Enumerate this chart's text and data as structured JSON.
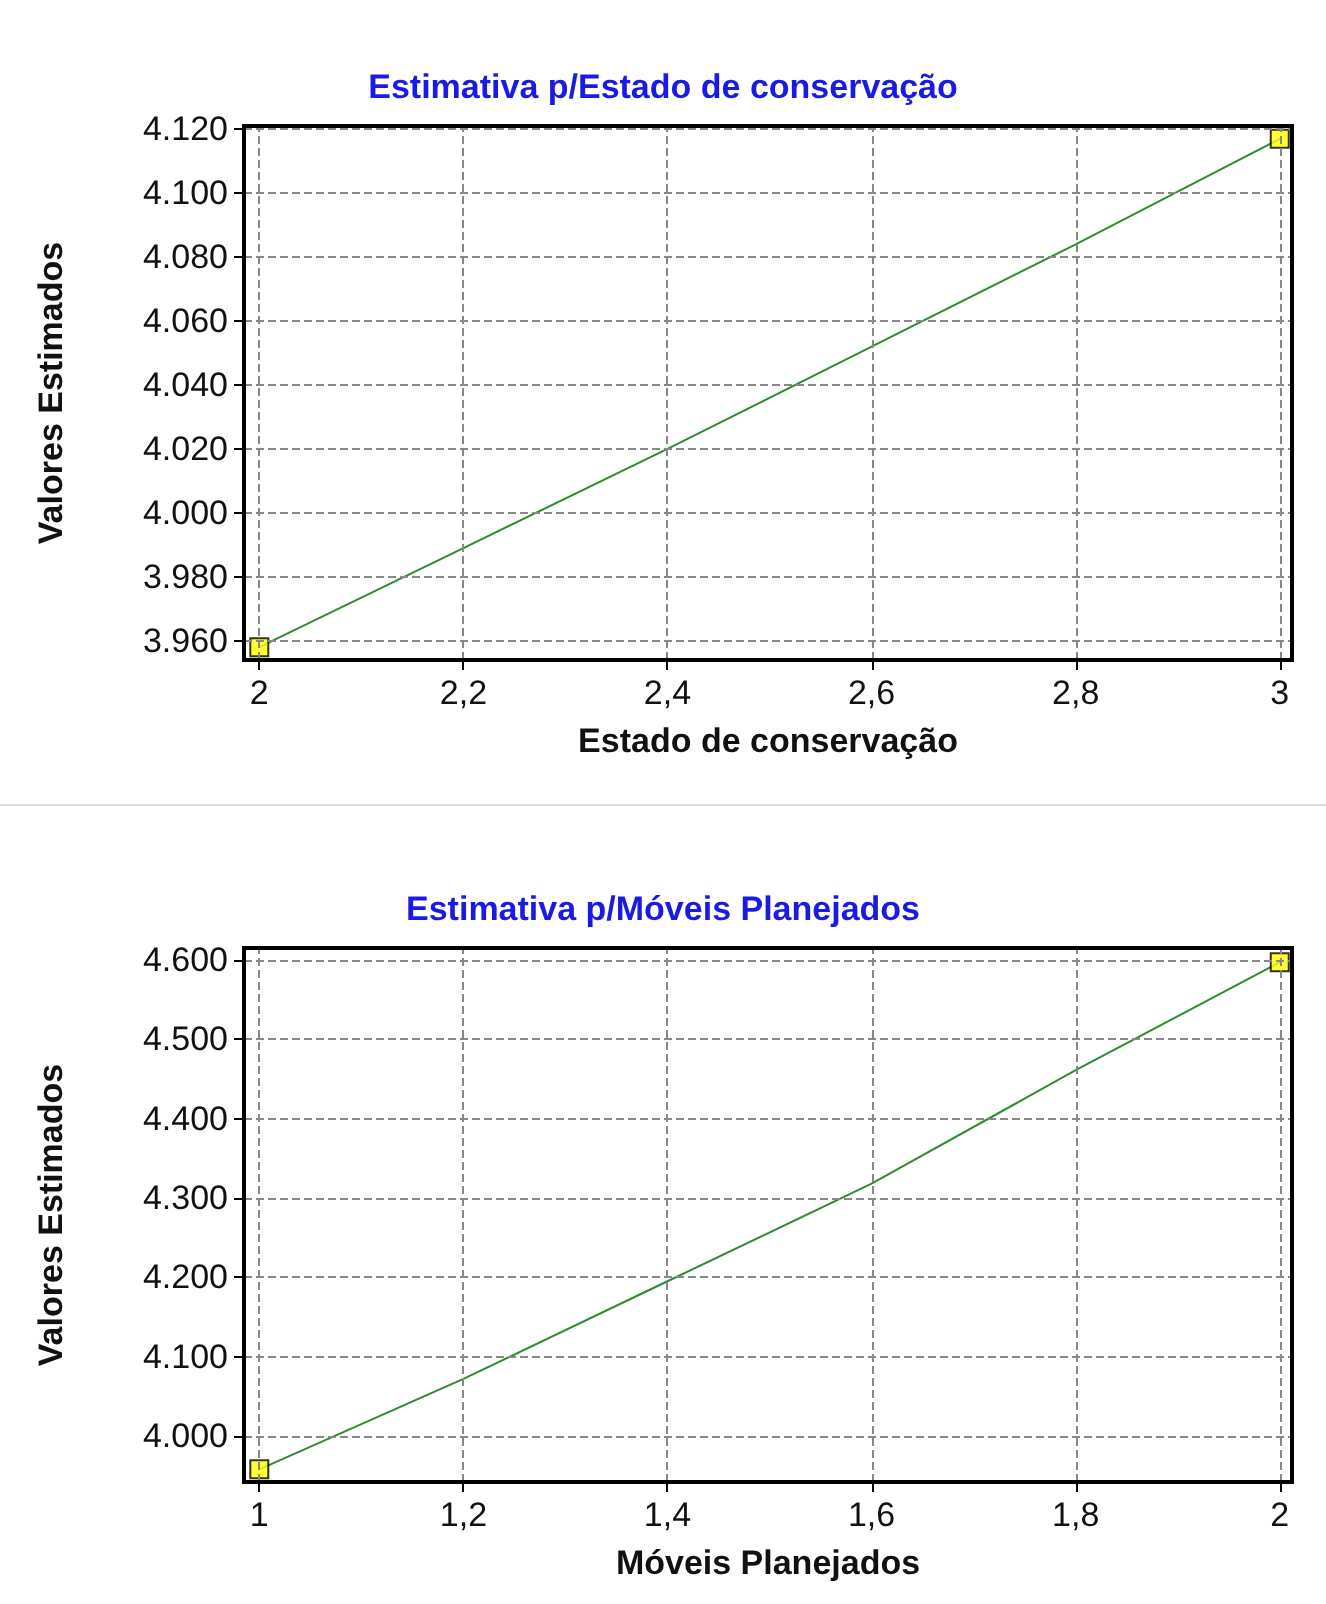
{
  "chart_data": [
    {
      "type": "line",
      "title": "Estimativa p/Estado de conservação",
      "xlabel": "Estado de conservação",
      "ylabel": "Valores Estimados",
      "x": [
        2,
        2.2,
        2.4,
        2.6,
        2.8,
        3
      ],
      "series": [
        {
          "type": "line",
          "color": "#2e8b2e",
          "values": [
            3958,
            3989,
            4020,
            4052,
            4084,
            4117
          ],
          "marker": "none"
        },
        {
          "type": "scatter",
          "color": "#ffff00",
          "x": [
            2,
            3
          ],
          "values": [
            3958,
            4117
          ],
          "marker": "square"
        }
      ],
      "xlim": [
        1.985,
        3.012
      ],
      "ylim": [
        3954,
        4121
      ],
      "xticks": [
        2,
        {
          "value": 2.2,
          "label": "2,2"
        },
        {
          "value": 2.4,
          "label": "2,4"
        },
        {
          "value": 2.6,
          "label": "2,6"
        },
        {
          "value": 2.8,
          "label": "2,8"
        },
        3
      ],
      "yticks": [
        {
          "value": 3960,
          "label": "3.960"
        },
        {
          "value": 3980,
          "label": "3.980"
        },
        {
          "value": 4000,
          "label": "4.000"
        },
        {
          "value": 4020,
          "label": "4.020"
        },
        {
          "value": 4040,
          "label": "4.040"
        },
        {
          "value": 4060,
          "label": "4.060"
        },
        {
          "value": 4080,
          "label": "4.080"
        },
        {
          "value": 4100,
          "label": "4.100"
        },
        {
          "value": 4120,
          "label": "4.120"
        }
      ],
      "grid": true
    },
    {
      "type": "line",
      "title": "Estimativa p/Móveis Planejados",
      "xlabel": "Móveis Planejados",
      "ylabel": "Valores Estimados",
      "x": [
        1,
        1.2,
        1.4,
        1.6,
        1.8,
        2
      ],
      "series": [
        {
          "type": "line",
          "color": "#2e8b2e",
          "values": [
            3958,
            4072,
            4195,
            4318,
            4461,
            4597
          ],
          "marker": "none"
        },
        {
          "type": "scatter",
          "color": "#ffff00",
          "x": [
            1,
            2
          ],
          "values": [
            3958,
            4597
          ],
          "marker": "square"
        }
      ],
      "xlim": [
        0.985,
        2.012
      ],
      "ylim": [
        3942,
        4615
      ],
      "xticks": [
        1,
        {
          "value": 1.2,
          "label": "1,2"
        },
        {
          "value": 1.4,
          "label": "1,4"
        },
        {
          "value": 1.6,
          "label": "1,6"
        },
        {
          "value": 1.8,
          "label": "1,8"
        },
        2
      ],
      "yticks": [
        {
          "value": 4000,
          "label": "4.000"
        },
        {
          "value": 4100,
          "label": "4.100"
        },
        {
          "value": 4200,
          "label": "4.200"
        },
        {
          "value": 4300,
          "label": "4.300"
        },
        {
          "value": 4400,
          "label": "4.400"
        },
        {
          "value": 4500,
          "label": "4.500"
        },
        {
          "value": 4600,
          "label": "4.600"
        }
      ],
      "grid": true
    }
  ]
}
